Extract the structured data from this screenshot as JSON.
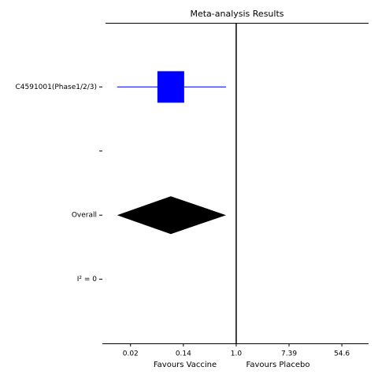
{
  "chart_data": {
    "type": "forest",
    "title": "Meta-analysis Results",
    "xlabel_left": "Favours Vaccine",
    "xlabel_right": "Favours Placebo",
    "log_x": true,
    "categories": [
      "C4591001(Phase1/2/3)",
      null,
      "Overall",
      "I² = 0"
    ],
    "estimates": [
      0.084,
      null,
      0.084,
      null
    ],
    "ci_low": [
      0.011,
      null,
      0.011,
      null
    ],
    "ci_high": [
      0.68,
      null,
      0.68,
      null
    ],
    "markers": [
      "square",
      null,
      "diamond",
      null
    ],
    "colors": [
      "#0000ff",
      null,
      "#000000",
      null
    ],
    "reference_line": 1,
    "xlim": [
      0.0063,
      150
    ],
    "xticks": [
      {
        "value": 0.0183,
        "label": "0.02"
      },
      {
        "value": 0.1353,
        "label": "0.14"
      },
      {
        "value": 1,
        "label": "1.0"
      },
      {
        "value": 7.389,
        "label": "7.39"
      },
      54.6
    ]
  }
}
